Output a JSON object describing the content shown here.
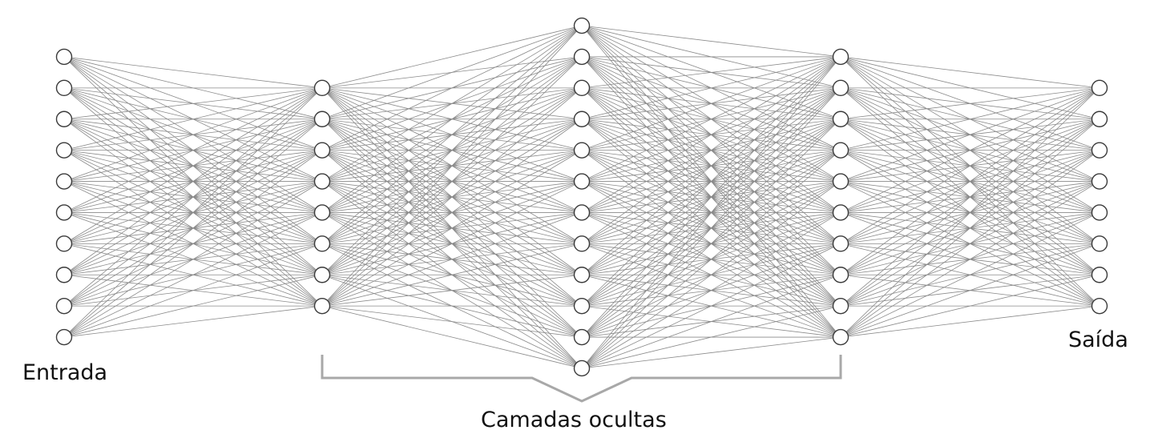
{
  "labels": {
    "input": "Entrada",
    "output": "Saída",
    "hidden": "Camadas ocultas"
  },
  "network": {
    "layers": [
      {
        "role": "input",
        "neurons": 10
      },
      {
        "role": "hidden",
        "neurons": 8
      },
      {
        "role": "hidden",
        "neurons": 12
      },
      {
        "role": "hidden",
        "neurons": 10
      },
      {
        "role": "output",
        "neurons": 8
      }
    ],
    "connectivity": "fully-connected"
  },
  "colors": {
    "edge": "#8a8a8a",
    "node_stroke": "#3a3a3a",
    "node_fill": "#ffffff",
    "brace": "#a8a8a8",
    "text": "#111111"
  }
}
